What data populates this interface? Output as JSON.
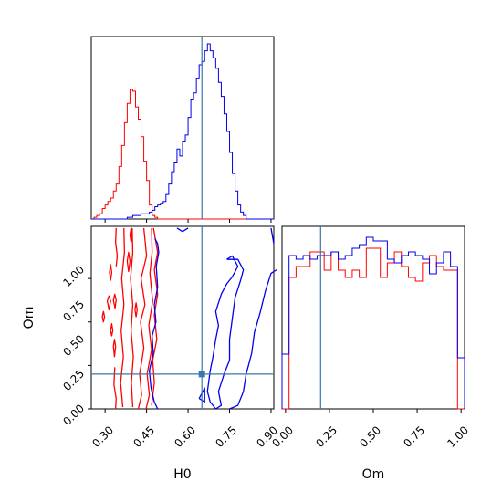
{
  "chart_data": {
    "type": "corner",
    "parameters": [
      "H0",
      "Om"
    ],
    "truth": {
      "H0": 0.65,
      "Om": 0.2,
      "color": "#3a77aa"
    },
    "series": [
      {
        "color": "#ff0000"
      },
      {
        "color": "#0000ee"
      }
    ],
    "panels": {
      "h0_hist": {
        "xlim": [
          0.25,
          0.91
        ],
        "bins": [
          0.25,
          0.26,
          0.27,
          0.28,
          0.29,
          0.3,
          0.31,
          0.32,
          0.33,
          0.34,
          0.35,
          0.36,
          0.37,
          0.38,
          0.39,
          0.4,
          0.41,
          0.42,
          0.43,
          0.44,
          0.45,
          0.46,
          0.47,
          0.48,
          0.49,
          0.5,
          0.51,
          0.52,
          0.53,
          0.54,
          0.55,
          0.56,
          0.57,
          0.58,
          0.59,
          0.6,
          0.61,
          0.62,
          0.63,
          0.64,
          0.65,
          0.66,
          0.67,
          0.68,
          0.69,
          0.7,
          0.71,
          0.72,
          0.73,
          0.74,
          0.75,
          0.76,
          0.77,
          0.78,
          0.79,
          0.8,
          0.81,
          0.82,
          0.83,
          0.84,
          0.85,
          0.86,
          0.87,
          0.88,
          0.89,
          0.9,
          0.91
        ],
        "red": [
          0,
          0.01,
          0.02,
          0.03,
          0.06,
          0.08,
          0.1,
          0.12,
          0.16,
          0.2,
          0.3,
          0.42,
          0.55,
          0.66,
          0.74,
          0.73,
          0.64,
          0.57,
          0.47,
          0.33,
          0.22,
          0.08,
          0.02,
          0.01,
          0,
          0,
          0,
          0,
          0,
          0,
          0,
          0,
          0,
          0,
          0,
          0,
          0,
          0,
          0,
          0,
          0,
          0,
          0,
          0,
          0,
          0,
          0,
          0,
          0,
          0,
          0,
          0,
          0,
          0,
          0,
          0,
          0,
          0,
          0,
          0,
          0,
          0,
          0,
          0,
          0,
          0
        ],
        "blue": [
          0,
          0,
          0,
          0,
          0,
          0,
          0,
          0,
          0,
          0,
          0,
          0,
          0,
          0.01,
          0.01,
          0.02,
          0.02,
          0.02,
          0.03,
          0.03,
          0.03,
          0.04,
          0.05,
          0.07,
          0.08,
          0.09,
          0.1,
          0.14,
          0.2,
          0.27,
          0.32,
          0.4,
          0.36,
          0.44,
          0.48,
          0.58,
          0.68,
          0.72,
          0.8,
          0.88,
          0.9,
          0.96,
          1.0,
          0.96,
          0.92,
          0.86,
          0.78,
          0.7,
          0.6,
          0.5,
          0.38,
          0.26,
          0.16,
          0.08,
          0.04,
          0.02,
          0,
          0,
          0,
          0,
          0,
          0,
          0,
          0,
          0,
          0
        ]
      },
      "h0_om_contour": {
        "xlim": [
          0.25,
          0.91
        ],
        "ylim": [
          0.0,
          1.05
        ]
      },
      "om_hist": {
        "xlim": [
          -0.02,
          1.02
        ],
        "bins": [
          -0.02,
          0.02,
          0.06,
          0.1,
          0.14,
          0.18,
          0.22,
          0.26,
          0.3,
          0.34,
          0.38,
          0.42,
          0.46,
          0.5,
          0.54,
          0.58,
          0.62,
          0.66,
          0.7,
          0.74,
          0.78,
          0.82,
          0.86,
          0.9,
          0.94,
          0.98,
          1.02
        ],
        "red": [
          0,
          0.72,
          0.78,
          0.78,
          0.86,
          0.86,
          0.76,
          0.86,
          0.76,
          0.72,
          0.76,
          0.72,
          0.88,
          0.88,
          0.72,
          0.8,
          0.86,
          0.78,
          0.72,
          0.7,
          0.8,
          0.84,
          0.78,
          0.76,
          0.76,
          0
        ],
        "blue": [
          0.3,
          0.84,
          0.82,
          0.84,
          0.82,
          0.84,
          0.84,
          0.86,
          0.82,
          0.84,
          0.88,
          0.9,
          0.94,
          0.92,
          0.92,
          0.82,
          0.8,
          0.84,
          0.86,
          0.84,
          0.82,
          0.74,
          0.8,
          0.86,
          0.78,
          0.28
        ]
      }
    },
    "ticks": {
      "h0": [
        "0.30",
        "0.45",
        "0.60",
        "0.75",
        "0.90"
      ],
      "om": [
        "0.00",
        "0.25",
        "0.50",
        "0.75",
        "1.00"
      ]
    },
    "labels": {
      "x1": "H0",
      "x2": "Om",
      "y2": "Om"
    }
  }
}
